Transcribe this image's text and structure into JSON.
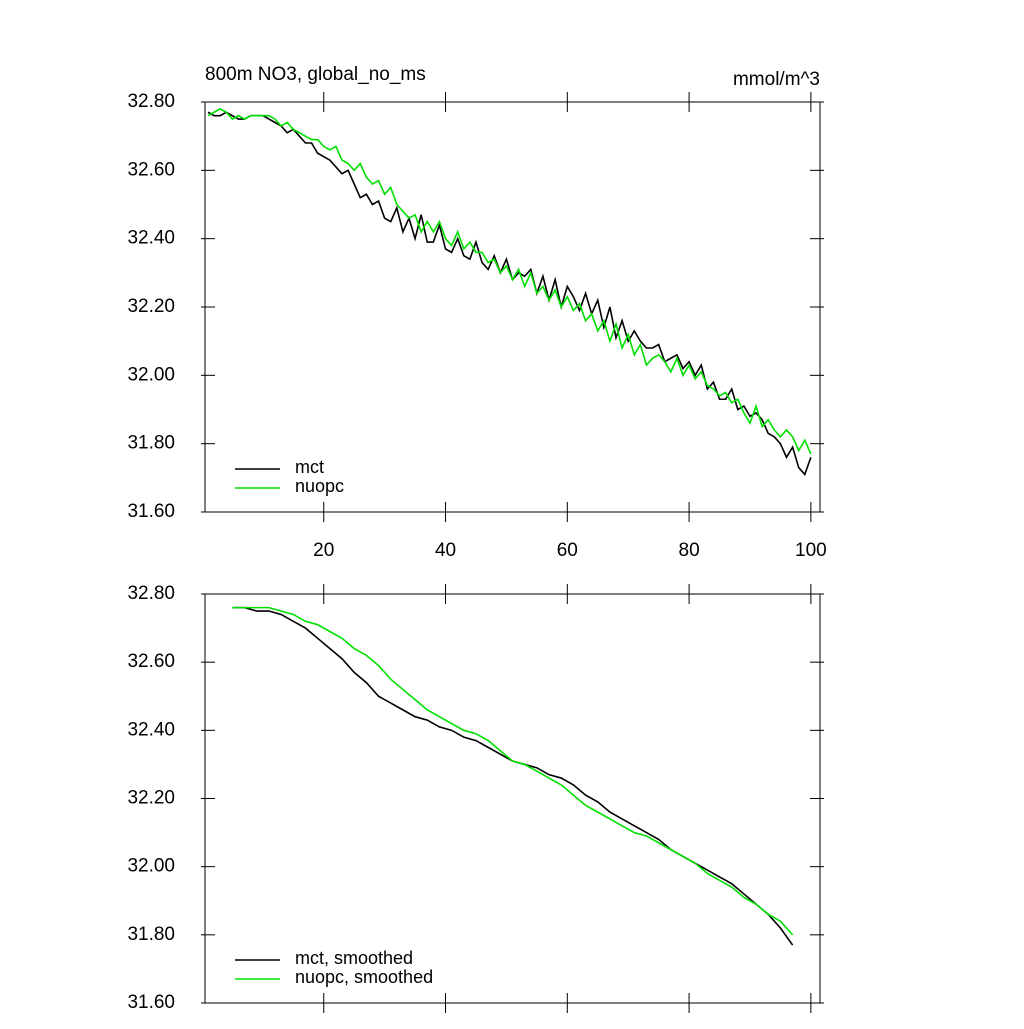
{
  "chart_data": [
    {
      "type": "line",
      "title": "800m NO3, global_no_ms",
      "units": "mmol/m^3",
      "x": [
        1,
        2,
        3,
        4,
        5,
        6,
        7,
        8,
        9,
        10,
        11,
        12,
        13,
        14,
        15,
        16,
        17,
        18,
        19,
        20,
        21,
        22,
        23,
        24,
        25,
        26,
        27,
        28,
        29,
        30,
        31,
        32,
        33,
        34,
        35,
        36,
        37,
        38,
        39,
        40,
        41,
        42,
        43,
        44,
        45,
        46,
        47,
        48,
        49,
        50,
        51,
        52,
        53,
        54,
        55,
        56,
        57,
        58,
        59,
        60,
        61,
        62,
        63,
        64,
        65,
        66,
        67,
        68,
        69,
        70,
        71,
        72,
        73,
        74,
        75,
        76,
        77,
        78,
        79,
        80,
        81,
        82,
        83,
        84,
        85,
        86,
        87,
        88,
        89,
        90,
        91,
        92,
        93,
        94,
        95,
        96,
        97,
        98,
        99,
        100
      ],
      "series": [
        {
          "name": "mct",
          "color": "#000000",
          "values": [
            32.77,
            32.76,
            32.76,
            32.77,
            32.76,
            32.75,
            32.75,
            32.76,
            32.76,
            32.76,
            32.75,
            32.74,
            32.73,
            32.71,
            32.72,
            32.7,
            32.68,
            32.68,
            32.65,
            32.64,
            32.63,
            32.61,
            32.59,
            32.6,
            32.56,
            32.52,
            32.53,
            32.5,
            32.51,
            32.46,
            32.45,
            32.49,
            32.42,
            32.46,
            32.4,
            32.47,
            32.39,
            32.39,
            32.44,
            32.37,
            32.36,
            32.4,
            32.35,
            32.34,
            32.39,
            32.33,
            32.31,
            32.35,
            32.3,
            32.34,
            32.28,
            32.3,
            32.29,
            32.31,
            32.24,
            32.29,
            32.22,
            32.28,
            32.2,
            32.26,
            32.23,
            32.19,
            32.24,
            32.18,
            32.22,
            32.14,
            32.2,
            32.11,
            32.16,
            32.1,
            32.13,
            32.1,
            32.08,
            32.08,
            32.09,
            32.04,
            32.05,
            32.06,
            32.02,
            32.04,
            32.0,
            32.03,
            31.96,
            31.98,
            31.93,
            31.93,
            31.96,
            31.9,
            31.91,
            31.88,
            31.89,
            31.87,
            31.83,
            31.82,
            31.8,
            31.76,
            31.79,
            31.73,
            31.71,
            31.76
          ]
        },
        {
          "name": "nuopc",
          "color": "#00e000",
          "values": [
            32.76,
            32.77,
            32.78,
            32.77,
            32.75,
            32.76,
            32.75,
            32.76,
            32.76,
            32.76,
            32.76,
            32.75,
            32.73,
            32.74,
            32.72,
            32.71,
            32.7,
            32.69,
            32.69,
            32.67,
            32.66,
            32.67,
            32.63,
            32.62,
            32.6,
            32.62,
            32.58,
            32.56,
            32.57,
            32.53,
            32.55,
            32.5,
            32.48,
            32.46,
            32.47,
            32.42,
            32.45,
            32.42,
            32.45,
            32.4,
            32.38,
            32.42,
            32.37,
            32.39,
            32.36,
            32.36,
            32.33,
            32.34,
            32.3,
            32.32,
            32.28,
            32.31,
            32.26,
            32.3,
            32.24,
            32.26,
            32.22,
            32.25,
            32.2,
            32.23,
            32.19,
            32.21,
            32.16,
            32.18,
            32.13,
            32.16,
            32.1,
            32.15,
            32.08,
            32.12,
            32.06,
            32.09,
            32.03,
            32.05,
            32.06,
            32.04,
            32.01,
            32.05,
            32.0,
            32.03,
            31.99,
            32.01,
            31.97,
            31.96,
            31.94,
            31.95,
            31.92,
            31.93,
            31.89,
            31.86,
            31.91,
            31.85,
            31.87,
            31.84,
            31.82,
            31.84,
            31.82,
            31.78,
            31.81,
            31.77
          ]
        }
      ],
      "xlim": [
        0.5,
        101.5
      ],
      "xticks": [
        20,
        40,
        60,
        80,
        100
      ],
      "show_xtick_labels": true,
      "ylim": [
        31.6,
        32.8
      ],
      "yticks": [
        {
          "value": 31.6,
          "label": "31.60"
        },
        {
          "value": 31.8,
          "label": "31.80"
        },
        {
          "value": 32.0,
          "label": "32.00"
        },
        {
          "value": 32.2,
          "label": "32.20"
        },
        {
          "value": 32.4,
          "label": "32.40"
        },
        {
          "value": 32.6,
          "label": "32.60"
        },
        {
          "value": 32.8,
          "label": "32.80"
        }
      ],
      "legend": "lower-left"
    },
    {
      "type": "line",
      "x": [
        5,
        7,
        9,
        11,
        13,
        15,
        17,
        19,
        21,
        23,
        25,
        27,
        29,
        31,
        33,
        35,
        37,
        39,
        41,
        43,
        45,
        47,
        49,
        51,
        53,
        55,
        57,
        59,
        61,
        63,
        65,
        67,
        69,
        71,
        73,
        75,
        77,
        79,
        81,
        83,
        85,
        87,
        89,
        91,
        93,
        95,
        97
      ],
      "series": [
        {
          "name": "mct, smoothed",
          "color": "#000000",
          "values": [
            32.76,
            32.76,
            32.75,
            32.75,
            32.74,
            32.72,
            32.7,
            32.67,
            32.64,
            32.61,
            32.57,
            32.54,
            32.5,
            32.48,
            32.46,
            32.44,
            32.43,
            32.41,
            32.4,
            32.38,
            32.37,
            32.35,
            32.33,
            32.31,
            32.3,
            32.29,
            32.27,
            32.26,
            32.24,
            32.21,
            32.19,
            32.16,
            32.14,
            32.12,
            32.1,
            32.08,
            32.05,
            32.03,
            32.01,
            31.99,
            31.97,
            31.95,
            31.92,
            31.89,
            31.86,
            31.82,
            31.77
          ]
        },
        {
          "name": "nuopc, smoothed",
          "color": "#00e000",
          "values": [
            32.76,
            32.76,
            32.76,
            32.76,
            32.75,
            32.74,
            32.72,
            32.71,
            32.69,
            32.67,
            32.64,
            32.62,
            32.59,
            32.55,
            32.52,
            32.49,
            32.46,
            32.44,
            32.42,
            32.4,
            32.39,
            32.37,
            32.34,
            32.31,
            32.3,
            32.28,
            32.26,
            32.24,
            32.21,
            32.18,
            32.16,
            32.14,
            32.12,
            32.1,
            32.09,
            32.07,
            32.05,
            32.03,
            32.01,
            31.98,
            31.96,
            31.94,
            31.91,
            31.89,
            31.86,
            31.84,
            31.8
          ]
        }
      ],
      "xlim": [
        0.5,
        101.5
      ],
      "xticks": [
        20,
        40,
        60,
        80,
        100
      ],
      "show_xtick_labels": false,
      "ylim": [
        31.6,
        32.8
      ],
      "yticks": [
        {
          "value": 31.6,
          "label": "31.60"
        },
        {
          "value": 31.8,
          "label": "31.80"
        },
        {
          "value": 32.0,
          "label": "32.00"
        },
        {
          "value": 32.2,
          "label": "32.20"
        },
        {
          "value": 32.4,
          "label": "32.40"
        },
        {
          "value": 32.6,
          "label": "32.60"
        },
        {
          "value": 32.8,
          "label": "32.80"
        }
      ],
      "legend": "lower-left"
    }
  ]
}
